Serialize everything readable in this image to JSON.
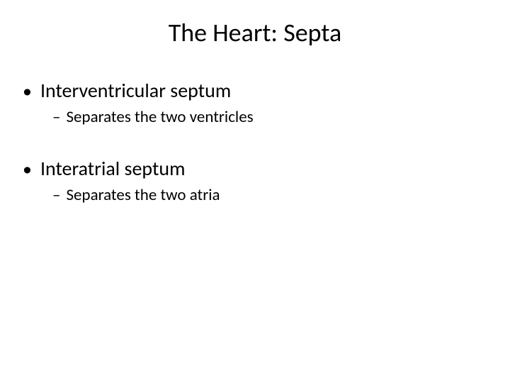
{
  "slide": {
    "title": "The Heart: Septa",
    "items": [
      {
        "bullet": "•",
        "text": "Interventricular septum",
        "sub": {
          "dash": "–",
          "text": "Separates the two ventricles"
        }
      },
      {
        "bullet": "•",
        "text": "Interatrial septum",
        "sub": {
          "dash": "–",
          "text": "Separates the two atria"
        }
      }
    ]
  },
  "style": {
    "background_color": "#ffffff",
    "text_color": "#000000",
    "title_fontsize": 36,
    "bullet_fontsize": 28,
    "sub_fontsize": 23,
    "font_family": "Calibri"
  }
}
